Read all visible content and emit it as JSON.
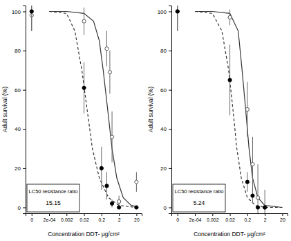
{
  "chart_data": [
    {
      "type": "scatter",
      "x_label": "Concentration DDT- μg/cm²",
      "y_label": "Adult survival (%)",
      "log": "x",
      "xlim": [
        9e-06,
        40
      ],
      "xticks": [
        {
          "value": 2e-05,
          "label": "0"
        },
        {
          "value": 0.0002,
          "label": "2e-04"
        },
        0.002,
        0.02,
        0.2,
        2,
        20
      ],
      "ylim": [
        -3,
        103
      ],
      "yticks": [
        0,
        20,
        40,
        60,
        80,
        100
      ],
      "annotation": {
        "label": "LC50 resistance ratio",
        "value": 15.15
      },
      "series": [
        {
          "type": "line",
          "line_style": "solid",
          "color": "#333333",
          "x": [
            0.0002,
            0.002,
            0.02,
            0.07,
            0.15,
            0.25,
            0.45,
            0.8,
            1.5,
            3.5,
            10,
            20
          ],
          "values": [
            100,
            100,
            99,
            95,
            85,
            70,
            50,
            30,
            15,
            5,
            1,
            0.5
          ]
        },
        {
          "type": "line",
          "line_style": "dashed",
          "color": "#333333",
          "x": [
            0.0002,
            0.002,
            0.006,
            0.015,
            0.03,
            0.06,
            0.15,
            0.5,
            2,
            20
          ],
          "values": [
            100,
            99,
            90,
            70,
            50,
            30,
            15,
            5,
            1,
            0
          ]
        },
        {
          "type": "scatter",
          "marker": "open-circle",
          "color": "#555555",
          "x": [
            2e-05,
            0.02,
            0.4,
            0.6,
            0.8,
            2,
            20
          ],
          "values": [
            98,
            95,
            81,
            69,
            36,
            3,
            13
          ],
          "errors": [
            8,
            7,
            9,
            11,
            13,
            3,
            5
          ]
        },
        {
          "type": "scatter",
          "marker": "filled-circle",
          "color": "#000000",
          "x": [
            2e-05,
            0.02,
            0.2,
            0.4,
            0.8,
            2,
            20
          ],
          "values": [
            100,
            61,
            20,
            11,
            2,
            0,
            0
          ],
          "errors": [
            10,
            13,
            11,
            7,
            2,
            0,
            0
          ]
        }
      ]
    },
    {
      "type": "scatter",
      "x_label": "Concentration DDT- μg/cm²",
      "y_label": "Adult survival (%)",
      "log": "x",
      "xlim": [
        9e-06,
        40
      ],
      "xticks": [
        {
          "value": 2e-05,
          "label": "0"
        },
        {
          "value": 0.0002,
          "label": "2e-04"
        },
        0.002,
        0.02,
        0.2,
        2,
        20
      ],
      "ylim": [
        -3,
        103
      ],
      "yticks": [
        0,
        20,
        40,
        60,
        80,
        100
      ],
      "annotation": {
        "label": "LC50 resistance ratio",
        "value": 5.24
      },
      "series": [
        {
          "type": "line",
          "line_style": "solid",
          "color": "#333333",
          "x": [
            0.0002,
            0.002,
            0.02,
            0.06,
            0.1,
            0.16,
            0.25,
            0.4,
            0.8,
            2,
            20
          ],
          "values": [
            100,
            100,
            99,
            90,
            70,
            50,
            30,
            15,
            5,
            1,
            0
          ]
        },
        {
          "type": "line",
          "line_style": "dashed",
          "color": "#333333",
          "x": [
            0.0002,
            0.002,
            0.007,
            0.017,
            0.03,
            0.05,
            0.09,
            0.2,
            0.6,
            2,
            20
          ],
          "values": [
            100,
            99,
            90,
            70,
            50,
            30,
            15,
            5,
            1,
            0,
            0
          ]
        },
        {
          "type": "scatter",
          "marker": "open-circle",
          "color": "#555555",
          "x": [
            2e-05,
            0.02,
            0.2,
            0.4,
            0.8,
            2
          ],
          "values": [
            100,
            97,
            50,
            22,
            5,
            0
          ],
          "errors": [
            10,
            4,
            14,
            14,
            17,
            9
          ]
        },
        {
          "type": "scatter",
          "marker": "filled-circle",
          "color": "#000000",
          "x": [
            2e-05,
            0.02,
            0.2,
            0.4,
            0.8,
            2
          ],
          "values": [
            100,
            65,
            13,
            6,
            0,
            0
          ],
          "errors": [
            10,
            18,
            5,
            4,
            0,
            0
          ]
        }
      ]
    }
  ]
}
